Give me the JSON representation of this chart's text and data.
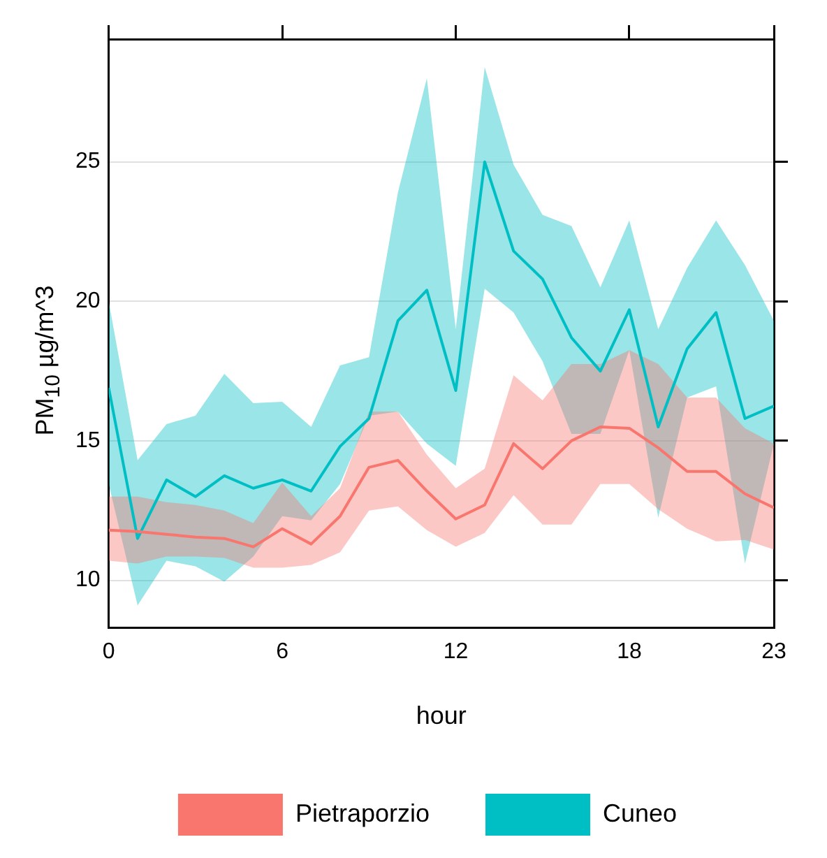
{
  "chart_data": {
    "type": "line",
    "xlabel": "hour",
    "ylabel": "PM$_{10}$ µg/m^3",
    "x": [
      0,
      1,
      2,
      3,
      4,
      5,
      6,
      7,
      8,
      9,
      10,
      11,
      12,
      13,
      14,
      15,
      16,
      17,
      18,
      19,
      20,
      21,
      22,
      23
    ],
    "series": [
      {
        "name": "Pietraporzio",
        "color": "#f8766d",
        "values": [
          11.8,
          11.75,
          11.65,
          11.55,
          11.5,
          11.2,
          11.85,
          11.3,
          12.3,
          14.05,
          14.3,
          13.2,
          12.2,
          12.7,
          14.9,
          14.0,
          15.0,
          15.5,
          15.45,
          14.75,
          13.9,
          13.9,
          13.1,
          12.6
        ],
        "lower": [
          10.7,
          10.6,
          10.85,
          10.85,
          10.8,
          10.45,
          10.45,
          10.55,
          11.0,
          12.5,
          12.65,
          11.8,
          11.2,
          11.7,
          13.05,
          12.0,
          12.0,
          13.45,
          13.45,
          12.55,
          11.85,
          11.4,
          11.45,
          11.1
        ],
        "upper": [
          13.0,
          13.0,
          12.8,
          12.7,
          12.5,
          12.05,
          13.5,
          12.3,
          13.3,
          16.05,
          16.05,
          14.5,
          13.3,
          14.0,
          17.35,
          16.45,
          17.75,
          17.75,
          18.25,
          17.75,
          16.55,
          16.55,
          15.45,
          14.9
        ]
      },
      {
        "name": "Cuneo",
        "color": "#00bfc4",
        "values": [
          16.9,
          11.5,
          13.6,
          13.0,
          13.75,
          13.3,
          13.6,
          13.2,
          14.8,
          15.8,
          19.3,
          20.4,
          16.8,
          25.0,
          21.8,
          20.8,
          18.7,
          17.5,
          19.7,
          15.5,
          18.3,
          19.6,
          15.8,
          16.25
        ],
        "lower": [
          13.45,
          9.1,
          10.7,
          10.5,
          9.95,
          10.85,
          12.3,
          12.15,
          13.45,
          15.9,
          16.05,
          14.9,
          14.1,
          20.45,
          19.6,
          17.85,
          15.25,
          15.25,
          18.25,
          12.25,
          16.55,
          16.95,
          10.6,
          14.9
        ],
        "upper": [
          20.0,
          14.3,
          15.6,
          15.9,
          17.4,
          16.35,
          16.4,
          15.5,
          17.7,
          18.0,
          23.9,
          28.0,
          19.0,
          28.4,
          24.9,
          23.1,
          22.7,
          20.5,
          22.9,
          19.0,
          21.2,
          22.9,
          21.3,
          19.3
        ]
      }
    ],
    "xlim": [
      0,
      23
    ],
    "xticks": [
      0,
      6,
      12,
      18,
      23
    ],
    "ylim": [
      8.3,
      29.4
    ],
    "yticks": [
      10,
      15,
      20,
      25
    ],
    "grid": true,
    "legend": "bottom",
    "marker": "none",
    "line_style": "solid"
  }
}
